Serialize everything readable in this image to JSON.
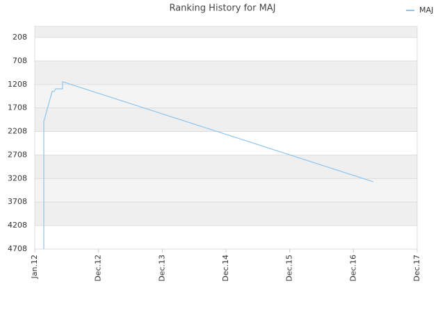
{
  "chart_data": {
    "type": "line",
    "title": "Ranking History for MAJ",
    "x_ticks_note_free": null,
    "xlim": [
      0,
      6
    ],
    "xticks": [
      {
        "value": 0,
        "label": "Jan.12"
      },
      {
        "value": 1,
        "label": "Dec.12"
      },
      {
        "value": 2,
        "label": "Dec.13"
      },
      {
        "value": 3,
        "label": "Dec.14"
      },
      {
        "value": 4,
        "label": "Dec.15"
      },
      {
        "value": 5,
        "label": "Dec.16"
      },
      {
        "value": 6,
        "label": "Dec.17"
      }
    ],
    "ylim": [
      -28,
      4708
    ],
    "y_inverted": true,
    "yticks": [
      208,
      708,
      1208,
      1708,
      2208,
      2708,
      3208,
      3708,
      4208,
      4708
    ],
    "grid": true,
    "legend": "top-right",
    "series": [
      {
        "name": "MAJ",
        "color": "#8cc4f0",
        "x": [
          0.142,
          0.142,
          0.273,
          0.305,
          0.327,
          0.436,
          0.436,
          5.31
        ],
        "values": [
          4708,
          1993,
          1355,
          1355,
          1300,
          1300,
          1150,
          3276
        ]
      }
    ]
  }
}
